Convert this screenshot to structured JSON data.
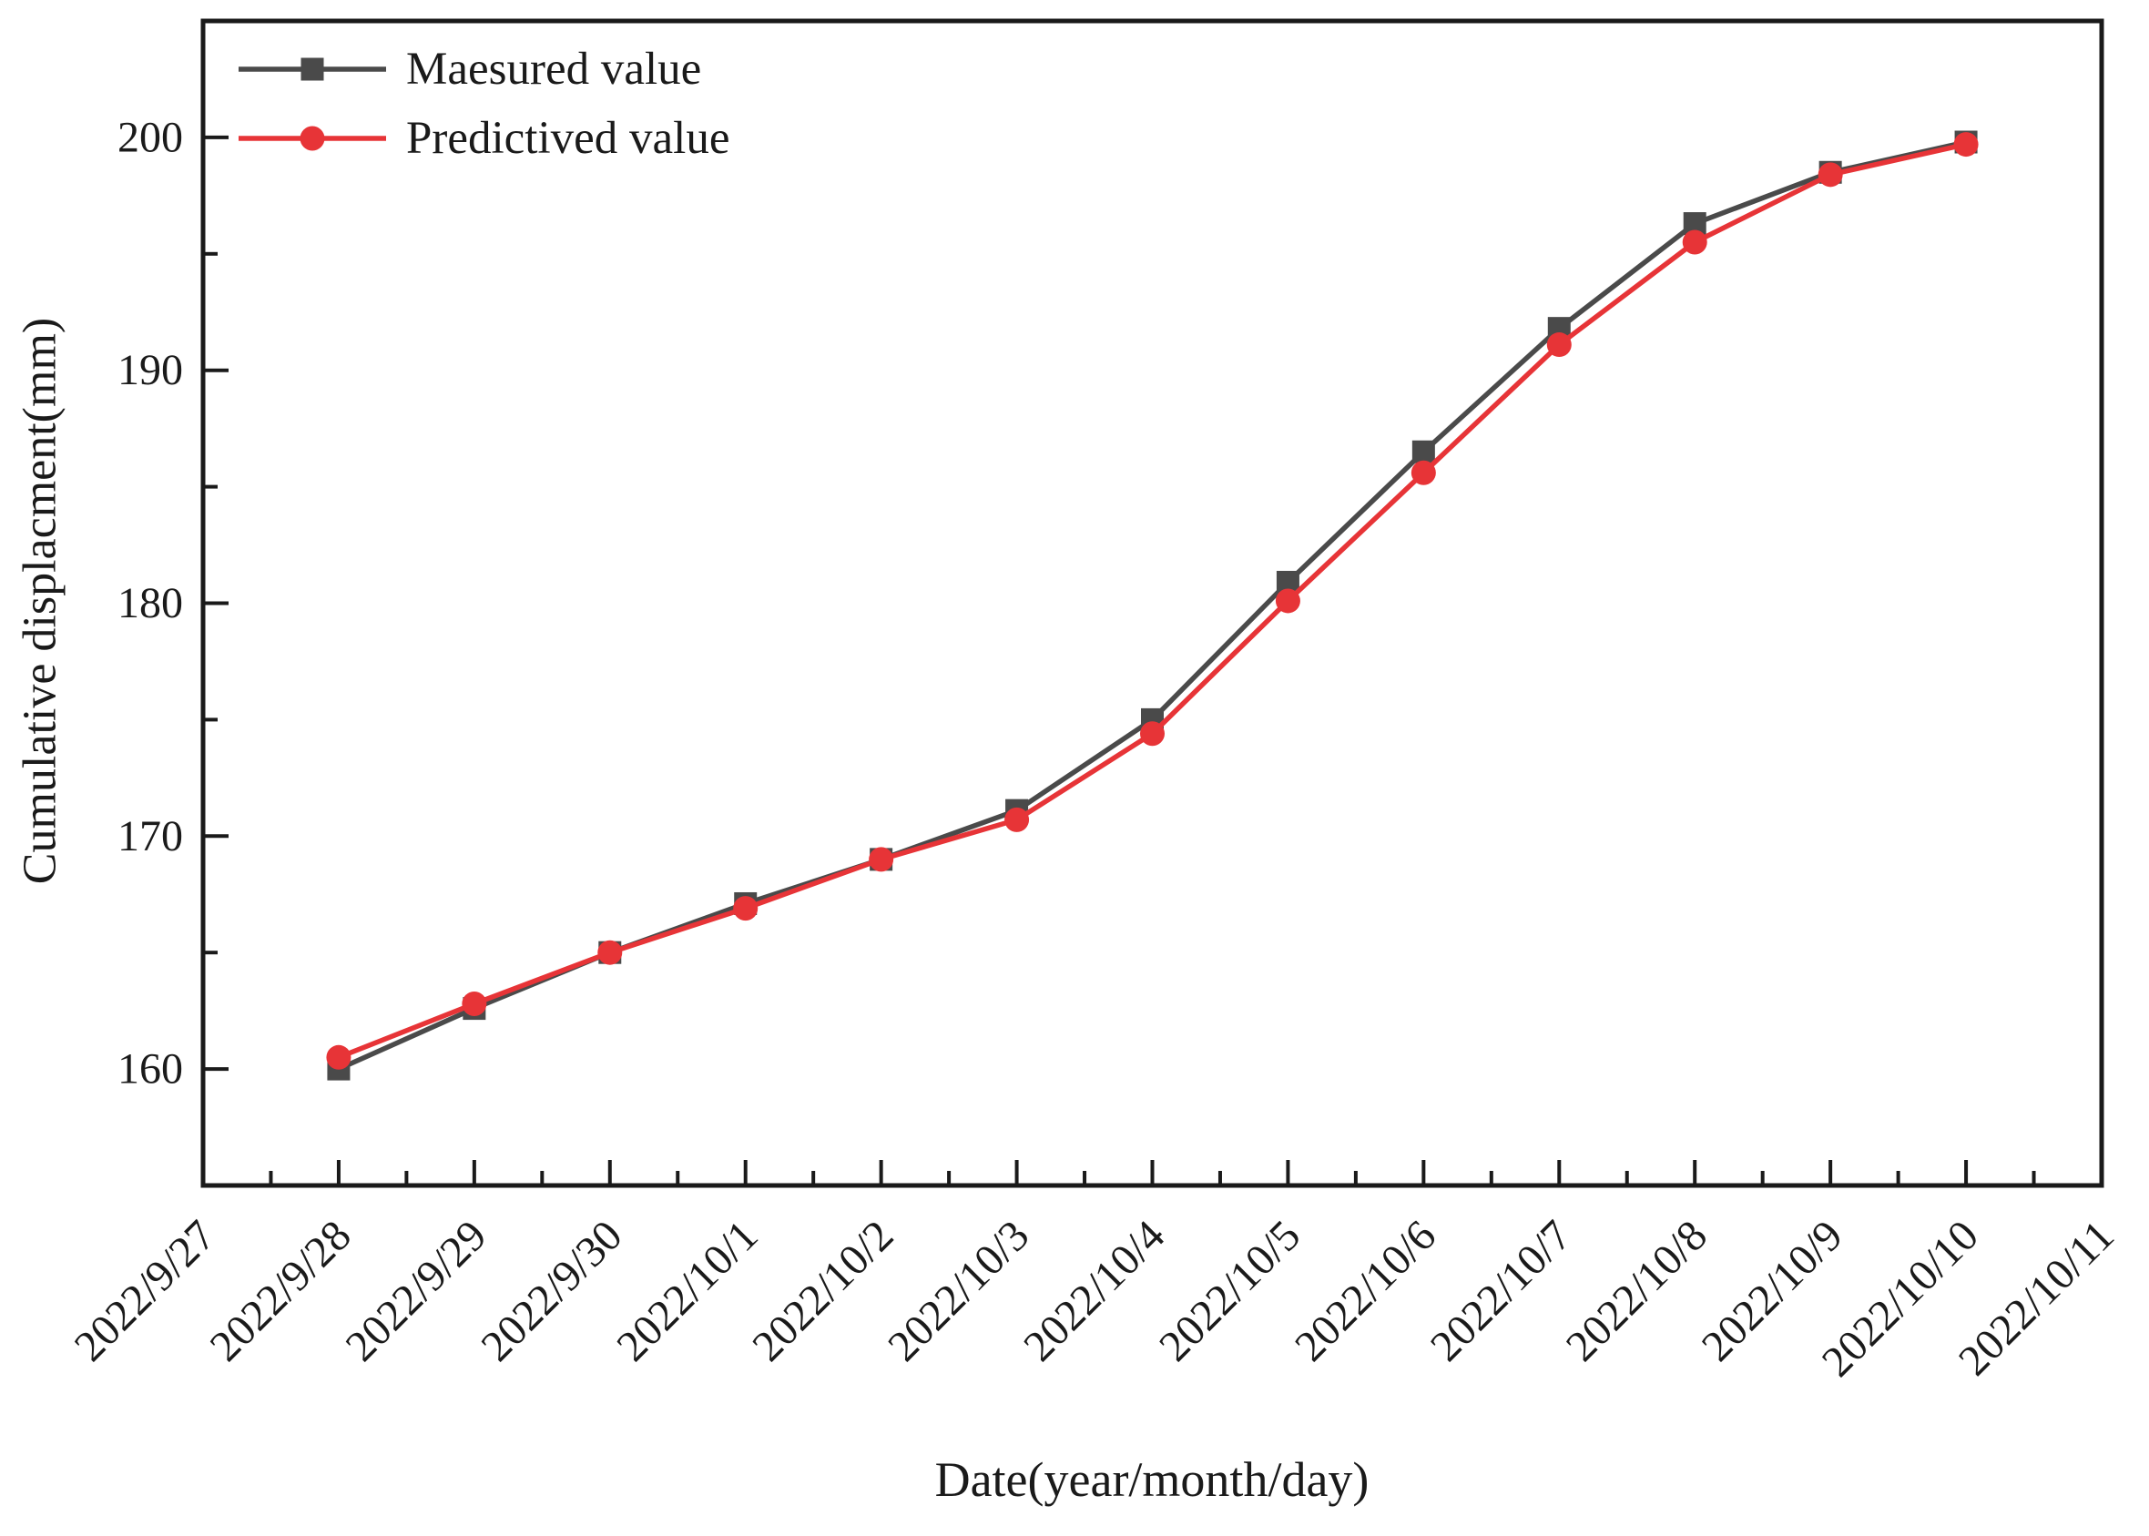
{
  "chart_data": {
    "type": "line",
    "title": "",
    "xlabel": "Date(year/month/day)",
    "ylabel": "Cumulative displacment(mm)",
    "x_tick_labels": [
      "2022/9/27",
      "2022/9/28",
      "2022/9/29",
      "2022/9/30",
      "2022/10/1",
      "2022/10/2",
      "2022/10/3",
      "2022/10/4",
      "2022/10/5",
      "2022/10/6",
      "2022/10/7",
      "2022/10/8",
      "2022/10/9",
      "2022/10/10",
      "2022/10/11"
    ],
    "y_ticks": [
      160,
      170,
      180,
      190,
      200
    ],
    "y_minor_ticks": [
      165,
      175,
      185,
      195
    ],
    "ylim": [
      155,
      205
    ],
    "grid": false,
    "legend_position": "top-left",
    "x_offset": 1,
    "categories": [
      "2022/9/28",
      "2022/9/29",
      "2022/9/30",
      "2022/10/1",
      "2022/10/2",
      "2022/10/3",
      "2022/10/4",
      "2022/10/5",
      "2022/10/6",
      "2022/10/7",
      "2022/10/8",
      "2022/10/9",
      "2022/10/10"
    ],
    "series": [
      {
        "name": "Maesured value",
        "marker": "square",
        "color": "#4a4a4a",
        "values": [
          160.0,
          162.6,
          165.0,
          167.1,
          169.0,
          171.1,
          175.0,
          180.9,
          186.5,
          191.8,
          196.3,
          198.5,
          199.8
        ]
      },
      {
        "name": "Predictived value",
        "marker": "circle",
        "color": "#e73437",
        "values": [
          160.5,
          162.8,
          165.0,
          166.9,
          169.0,
          170.7,
          174.4,
          180.1,
          185.6,
          191.1,
          195.5,
          198.4,
          199.7
        ]
      }
    ]
  }
}
